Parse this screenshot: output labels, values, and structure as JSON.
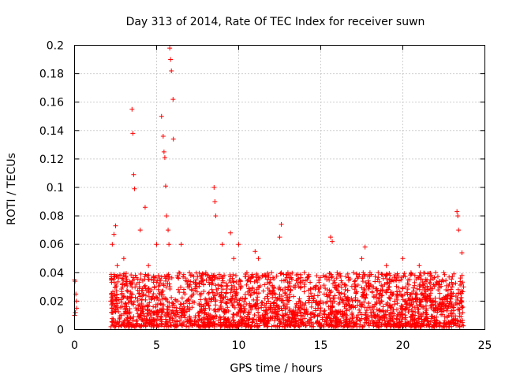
{
  "chart_data": {
    "type": "scatter",
    "title": "Day 313 of 2014, Rate Of TEC Index for receiver suwn",
    "xlabel": "GPS time / hours",
    "ylabel": "ROTI / TECUs",
    "xlim": [
      0,
      25
    ],
    "ylim": [
      0,
      0.2
    ],
    "xticks": [
      "0",
      "5",
      "10",
      "15",
      "20",
      "25"
    ],
    "yticks": [
      "0",
      "0.02",
      "0.04",
      "0.06",
      "0.08",
      "0.1",
      "0.12",
      "0.14",
      "0.16",
      "0.18",
      "0.2"
    ],
    "grid": true,
    "marker": "+",
    "series_color": "#ff0000",
    "series": [
      {
        "name": "ROTI",
        "x": [
          0.0,
          0.05,
          0.1,
          0.0,
          0.08,
          0.12,
          0.03,
          2.2,
          2.3,
          2.4,
          2.5,
          2.6,
          3.0,
          3.5,
          3.55,
          3.6,
          3.65,
          4.0,
          4.3,
          4.5,
          5.0,
          5.3,
          5.4,
          5.45,
          5.5,
          5.55,
          5.6,
          5.7,
          5.75,
          5.8,
          5.85,
          5.9,
          6.0,
          6.02,
          6.5,
          7.0,
          8.0,
          8.5,
          8.55,
          8.6,
          9.0,
          9.5,
          9.7,
          10.0,
          10.5,
          11.0,
          11.2,
          12.0,
          12.5,
          12.6,
          13.0,
          14.0,
          15.0,
          15.6,
          15.7,
          16.0,
          17.0,
          17.5,
          17.7,
          18.0,
          18.5,
          19.0,
          20.0,
          20.5,
          21.0,
          22.0,
          22.5,
          23.0,
          23.3,
          23.35,
          23.4,
          23.6,
          23.7
        ],
        "y": [
          0.035,
          0.012,
          0.02,
          0.01,
          0.025,
          0.015,
          0.034,
          0.02,
          0.06,
          0.067,
          0.073,
          0.045,
          0.05,
          0.155,
          0.138,
          0.109,
          0.099,
          0.07,
          0.086,
          0.045,
          0.06,
          0.15,
          0.136,
          0.125,
          0.121,
          0.101,
          0.08,
          0.07,
          0.06,
          0.198,
          0.19,
          0.182,
          0.162,
          0.134,
          0.06,
          0.04,
          0.04,
          0.1,
          0.09,
          0.08,
          0.06,
          0.068,
          0.05,
          0.06,
          0.04,
          0.055,
          0.05,
          0.04,
          0.065,
          0.074,
          0.04,
          0.04,
          0.03,
          0.065,
          0.062,
          0.04,
          0.04,
          0.05,
          0.058,
          0.04,
          0.04,
          0.045,
          0.05,
          0.04,
          0.045,
          0.04,
          0.04,
          0.03,
          0.083,
          0.08,
          0.07,
          0.054,
          0.03
        ],
        "baseline": {
          "note": "dense band of samples between 0.002 and 0.04 TECU/min from 2.2 h to 23.7 h",
          "x_range": [
            2.2,
            23.7
          ],
          "y_range": [
            0.002,
            0.04
          ]
        }
      }
    ]
  }
}
